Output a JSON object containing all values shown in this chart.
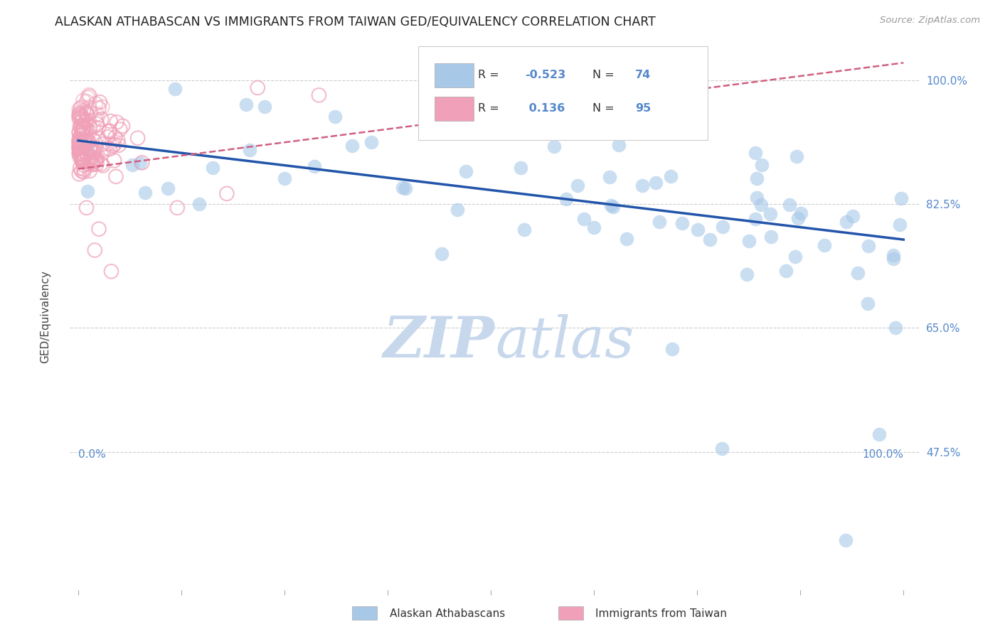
{
  "title": "ALASKAN ATHABASCAN VS IMMIGRANTS FROM TAIWAN GED/EQUIVALENCY CORRELATION CHART",
  "source": "Source: ZipAtlas.com",
  "ylabel": "GED/Equivalency",
  "legend_blue_R": "-0.523",
  "legend_blue_N": "74",
  "legend_pink_R": "0.136",
  "legend_pink_N": "95",
  "blue_color": "#A8C8E8",
  "pink_color": "#F0A0B8",
  "blue_line_color": "#2255AA",
  "pink_line_color": "#D06080",
  "background_color": "#FFFFFF",
  "watermark_color": "#C8D8EC",
  "grid_color": "#CCCCCC",
  "title_color": "#222222",
  "source_color": "#999999",
  "tick_color": "#5588CC",
  "ytick_vals": [
    1.0,
    0.825,
    0.65,
    0.475
  ],
  "ytick_labels": [
    "100.0%",
    "82.5%",
    "65.0%",
    "47.5%"
  ],
  "xlim": [
    -0.01,
    1.02
  ],
  "ylim": [
    0.28,
    1.06
  ]
}
